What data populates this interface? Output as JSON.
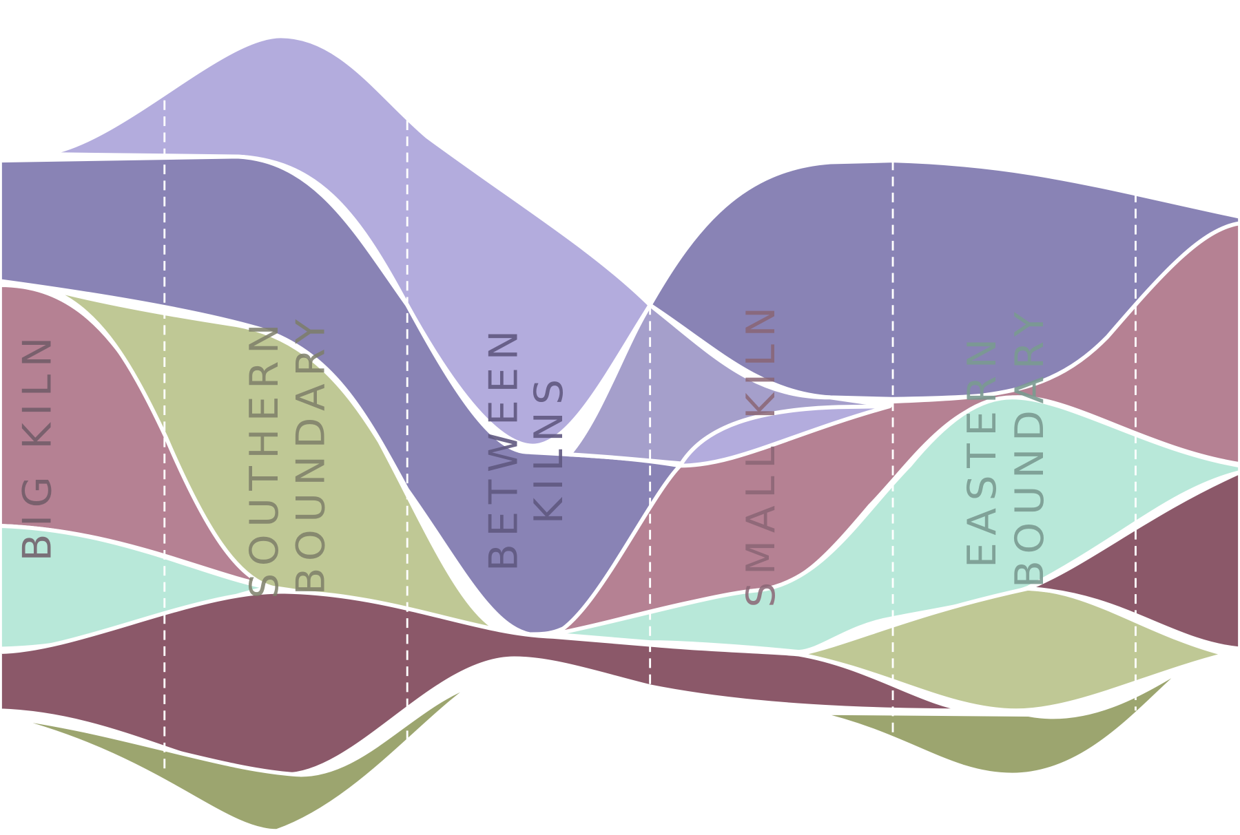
{
  "labels": [
    {
      "lines": [
        "BIG KILN"
      ]
    },
    {
      "lines": [
        "SOUTHERN",
        "BOUNDARY"
      ]
    },
    {
      "lines": [
        "BETWEEN",
        "KILNS"
      ]
    },
    {
      "lines": [
        "SMALL KILN"
      ]
    },
    {
      "lines": [
        "EASTERN",
        "BOUNDARY"
      ]
    }
  ]
}
